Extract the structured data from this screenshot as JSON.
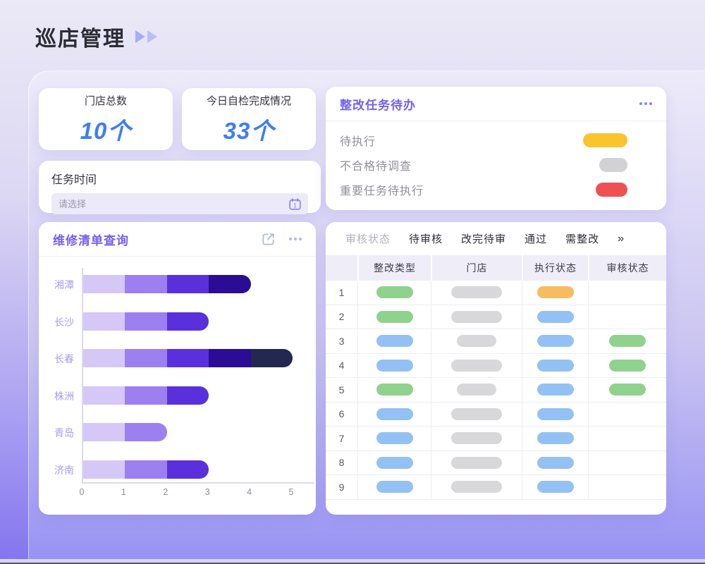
{
  "page": {
    "title": "巡店管理"
  },
  "icons": {
    "title_arrows": "double-play-icon",
    "calendar": "calendar-icon",
    "export": "share-export-icon",
    "more_menu": "ellipsis-menu-icon"
  },
  "stats": [
    {
      "label": "门店总数",
      "value": "10个"
    },
    {
      "label": "今日自检完成情况",
      "value": "33个"
    }
  ],
  "task_time": {
    "label": "任务时间",
    "placeholder": "请选择"
  },
  "todo": {
    "title": "整改任务待办",
    "items": [
      {
        "label": "待执行",
        "pill_color": "#FAC42E",
        "pill_width": 63
      },
      {
        "label": "不合格待调查",
        "pill_color": "#D2D2D4",
        "pill_width": 40
      },
      {
        "label": "重要任务待执行",
        "pill_color": "#EE5151",
        "pill_width": 45
      }
    ]
  },
  "repair_chart": {
    "title": "维修清单查询"
  },
  "chart_data": {
    "type": "bar",
    "orientation": "horizontal",
    "stacked": true,
    "title": "维修清单查询",
    "categories": [
      "湘潭",
      "长沙",
      "长春",
      "株洲",
      "青岛",
      "济南"
    ],
    "series": [
      {
        "name": "level-1",
        "color": "#D5C8F6",
        "values": [
          1,
          1,
          1,
          1,
          1,
          1
        ]
      },
      {
        "name": "level-2",
        "color": "#9C80F0",
        "values": [
          1,
          1,
          1,
          1,
          1,
          1
        ]
      },
      {
        "name": "level-3",
        "color": "#5A30DC",
        "values": [
          1,
          1,
          1,
          1,
          0,
          1
        ]
      },
      {
        "name": "level-4",
        "color": "#2A0D94",
        "values": [
          1,
          0,
          1,
          0,
          0,
          0
        ]
      },
      {
        "name": "level-5",
        "color": "#232850",
        "values": [
          0,
          0,
          1,
          0,
          0,
          0
        ]
      }
    ],
    "totals": [
      4,
      3,
      5,
      3,
      2,
      3
    ],
    "xlim": [
      0,
      5
    ],
    "x_ticks": [
      "0",
      "1",
      "2",
      "3",
      "4",
      "5"
    ],
    "xlabel": "",
    "ylabel": "",
    "legend": false,
    "grid": false
  },
  "review_table": {
    "filter_label": "审核状态",
    "tabs": [
      "待审核",
      "改完待审",
      "通过",
      "需整改"
    ],
    "more": "»",
    "columns": [
      "",
      "整改类型",
      "门店",
      "执行状态",
      "审核状态"
    ],
    "pill_colors": {
      "green": "#8FD28D",
      "blue": "#93C1F4",
      "orange": "#F5BD60",
      "gray": "#D8D8DA"
    },
    "rows": [
      {
        "num": "1",
        "type": "green",
        "store": "wide",
        "exec": "orange",
        "review": null
      },
      {
        "num": "2",
        "type": "green",
        "store": "wide",
        "exec": "blue",
        "review": null
      },
      {
        "num": "3",
        "type": "blue",
        "store": "narrow",
        "exec": "blue",
        "review": "green"
      },
      {
        "num": "4",
        "type": "blue",
        "store": "wide",
        "exec": "blue",
        "review": "green"
      },
      {
        "num": "5",
        "type": "green",
        "store": "narrow",
        "exec": "blue",
        "review": "green"
      },
      {
        "num": "6",
        "type": "blue",
        "store": "wide",
        "exec": "blue",
        "review": null
      },
      {
        "num": "7",
        "type": "blue",
        "store": "wide",
        "exec": "blue",
        "review": null
      },
      {
        "num": "8",
        "type": "blue",
        "store": "wide",
        "exec": "blue",
        "review": null
      },
      {
        "num": "9",
        "type": "blue",
        "store": "wide",
        "exec": "blue",
        "review": null
      }
    ]
  }
}
